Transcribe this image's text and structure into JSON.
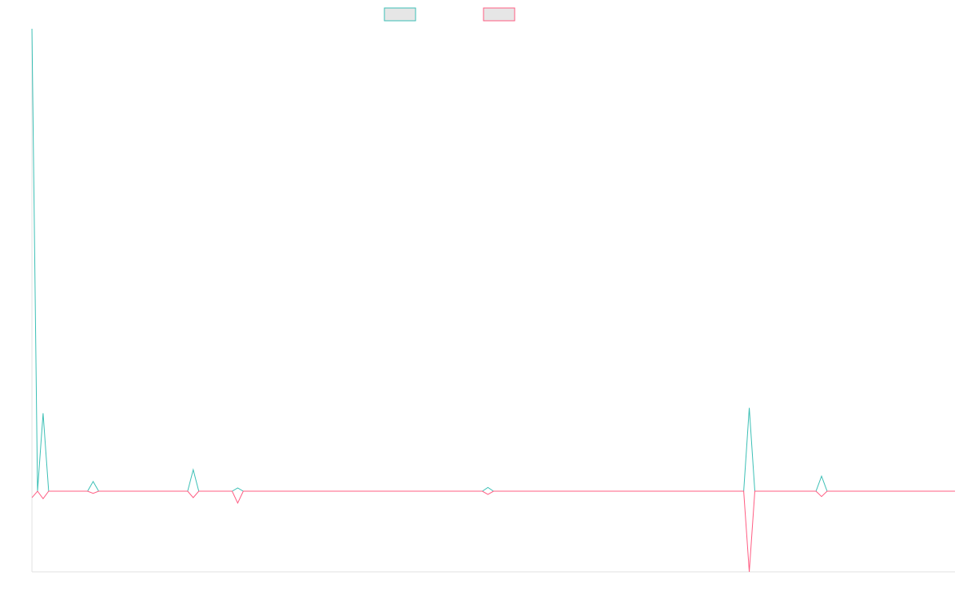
{
  "chart_data": {
    "type": "line",
    "title": "",
    "xlabel": "",
    "ylabel": "",
    "x": [
      0,
      1,
      2,
      3,
      4,
      5,
      6,
      7,
      8,
      9,
      10,
      11,
      12,
      13,
      14,
      15,
      16,
      17,
      18,
      19,
      20,
      21,
      22,
      23,
      24,
      25,
      26,
      27,
      28,
      29,
      30,
      31,
      32,
      33,
      34,
      35,
      36,
      37,
      38,
      39,
      40,
      41,
      42,
      43,
      44,
      45,
      46,
      47,
      48,
      49,
      50,
      51,
      52,
      53,
      54,
      55,
      56,
      57,
      58,
      59,
      60,
      61,
      62,
      63,
      64,
      65,
      66,
      67,
      68,
      69,
      70,
      71,
      72,
      73,
      74,
      75,
      76,
      77,
      78,
      79,
      80,
      81,
      82,
      83,
      84,
      85,
      86,
      87,
      88,
      89,
      90,
      91,
      92,
      93,
      94,
      95,
      96,
      97,
      98,
      99,
      100,
      101,
      102,
      103,
      104,
      105,
      106,
      107,
      108,
      109,
      110,
      111,
      112,
      113,
      114,
      115,
      116,
      117,
      118,
      119,
      120,
      121,
      122,
      123,
      124,
      125,
      126,
      127,
      128,
      129,
      130,
      131,
      132,
      133,
      134,
      135,
      136,
      137,
      138,
      139,
      140,
      141,
      142,
      143,
      144,
      145,
      146,
      147,
      148,
      149,
      150,
      151,
      152,
      153,
      154,
      155,
      156,
      157,
      158,
      159,
      160,
      161,
      162,
      163,
      164,
      165,
      166
    ],
    "xlim": [
      0,
      166
    ],
    "ylim": [
      -150,
      860
    ],
    "series": [
      {
        "color": "#3bbfb5",
        "values": [
          860,
          0,
          145,
          0,
          0,
          0,
          0,
          0,
          0,
          0,
          0,
          18,
          0,
          0,
          0,
          0,
          0,
          0,
          0,
          0,
          0,
          0,
          0,
          0,
          0,
          0,
          0,
          0,
          0,
          40,
          0,
          0,
          0,
          0,
          0,
          0,
          0,
          6,
          0,
          0,
          0,
          0,
          0,
          0,
          0,
          0,
          0,
          0,
          0,
          0,
          0,
          0,
          0,
          0,
          0,
          0,
          0,
          0,
          0,
          0,
          0,
          0,
          0,
          0,
          0,
          0,
          0,
          0,
          0,
          0,
          0,
          0,
          0,
          0,
          0,
          0,
          0,
          0,
          0,
          0,
          0,
          0,
          0,
          0,
          0,
          0,
          0,
          0,
          0,
          0,
          0,
          0,
          0,
          0,
          0,
          0,
          0,
          0,
          0,
          0,
          0,
          0,
          0,
          0,
          0,
          0,
          0,
          0,
          0,
          0,
          0,
          0,
          0,
          0,
          0,
          0,
          0,
          0,
          0,
          0,
          0,
          0,
          0,
          0,
          0,
          0,
          0,
          0,
          0,
          0,
          0,
          0,
          0,
          0,
          0,
          0,
          0,
          0,
          0,
          0,
          0,
          0,
          0,
          0,
          0,
          0,
          0,
          0,
          0,
          0,
          0,
          0,
          0,
          0,
          0,
          0,
          0,
          0,
          0,
          0,
          0,
          0,
          0,
          0,
          0,
          0,
          0
        ]
      },
      {
        "color": "#ff5c82",
        "values": [
          -12,
          0,
          -14,
          0,
          0,
          0,
          0,
          0,
          0,
          0,
          0,
          -4,
          0,
          0,
          0,
          0,
          0,
          0,
          0,
          0,
          0,
          0,
          0,
          0,
          0,
          0,
          0,
          0,
          0,
          -12,
          0,
          0,
          0,
          0,
          0,
          0,
          0,
          -22,
          0,
          0,
          0,
          0,
          0,
          0,
          0,
          0,
          0,
          0,
          0,
          0,
          0,
          0,
          0,
          0,
          0,
          0,
          0,
          0,
          0,
          0,
          0,
          0,
          0,
          0,
          0,
          0,
          0,
          0,
          0,
          0,
          0,
          0,
          0,
          0,
          0,
          0,
          0,
          0,
          0,
          0,
          0,
          0,
          0,
          0,
          0,
          0,
          0,
          0,
          0,
          0,
          0,
          0,
          0,
          0,
          0,
          0,
          0,
          0,
          0,
          0,
          0,
          0,
          0,
          0,
          0,
          0,
          0,
          0,
          0,
          0,
          0,
          0,
          0,
          0,
          0,
          0,
          0,
          0,
          0,
          0,
          0,
          0,
          0,
          0,
          0,
          0,
          0,
          0,
          0,
          0,
          0,
          0,
          0,
          0,
          0,
          0,
          0,
          0,
          0,
          0,
          0,
          0,
          0,
          0,
          0,
          0,
          0,
          0,
          0,
          0,
          0,
          0,
          0,
          0,
          0,
          0,
          0,
          0,
          0,
          0,
          0,
          0,
          0,
          0,
          0,
          0,
          0
        ]
      }
    ],
    "spikes": [
      {
        "x": 82,
        "series": 0,
        "value": 7
      },
      {
        "x": 82,
        "series": 1,
        "value": -6
      },
      {
        "x": 129,
        "series": 0,
        "value": 155
      },
      {
        "x": 129,
        "series": 1,
        "value": -150
      },
      {
        "x": 142,
        "series": 0,
        "value": 28
      },
      {
        "x": 142,
        "series": 1,
        "value": -10
      }
    ],
    "grid": false,
    "legend_position": "top-center"
  }
}
